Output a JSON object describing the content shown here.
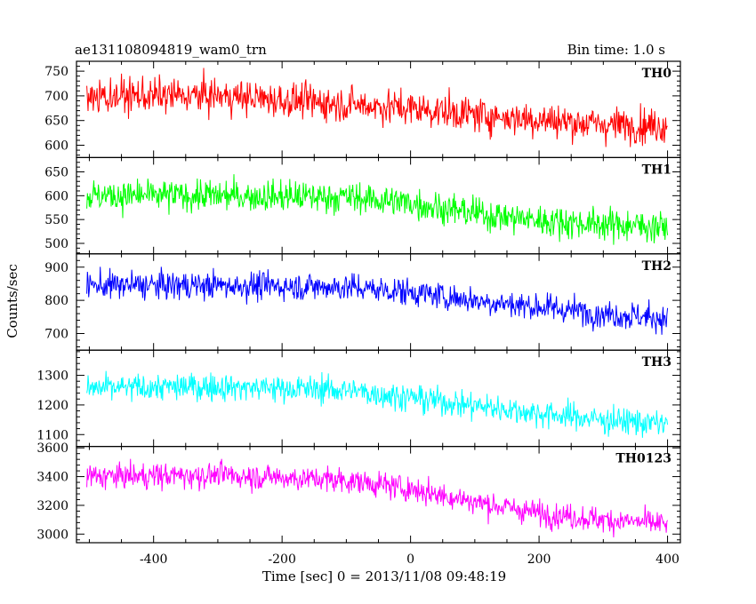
{
  "header": {
    "title": "ae131108094819_wam0_trn",
    "bin_time": "Bin time: 1.0 s"
  },
  "axes": {
    "xlabel": "Time [sec] 0 = 2013/11/08 09:48:19",
    "ylabel": "Counts/sec"
  },
  "chart_data": {
    "type": "line",
    "title": "ae131108094819_wam0_trn",
    "xlabel": "Time [sec] 0 = 2013/11/08 09:48:19",
    "ylabel": "Counts/sec",
    "xlim": [
      -520,
      420
    ],
    "x_range": [
      -504,
      400
    ],
    "x_step": 1.0,
    "x_ticks": [
      -400,
      -200,
      0,
      200,
      400
    ],
    "grid": false,
    "panels": [
      {
        "name": "TH0",
        "color": "#ff0000",
        "ylim": [
          575,
          770
        ],
        "y_ticks": [
          600,
          650,
          700,
          750
        ],
        "trend": [
          [
            -504,
            700
          ],
          [
            -300,
            700
          ],
          [
            -100,
            683
          ],
          [
            0,
            675
          ],
          [
            100,
            662
          ],
          [
            200,
            652
          ],
          [
            300,
            642
          ],
          [
            400,
            640
          ]
        ],
        "noise_sd": 32
      },
      {
        "name": "TH1",
        "color": "#00ff00",
        "ylim": [
          478,
          680
        ],
        "y_ticks": [
          500,
          550,
          600,
          650
        ],
        "trend": [
          [
            -504,
            600
          ],
          [
            -300,
            600
          ],
          [
            -100,
            597
          ],
          [
            0,
            585
          ],
          [
            100,
            563
          ],
          [
            200,
            548
          ],
          [
            300,
            540
          ],
          [
            400,
            535
          ]
        ],
        "noise_sd": 30
      },
      {
        "name": "TH2",
        "color": "#0000ff",
        "ylim": [
          650,
          940
        ],
        "y_ticks": [
          700,
          800,
          900
        ],
        "trend": [
          [
            -504,
            845
          ],
          [
            -300,
            845
          ],
          [
            -100,
            840
          ],
          [
            0,
            825
          ],
          [
            100,
            800
          ],
          [
            200,
            780
          ],
          [
            300,
            760
          ],
          [
            400,
            745
          ]
        ],
        "noise_sd": 38
      },
      {
        "name": "TH3",
        "color": "#00ffff",
        "ylim": [
          1060,
          1385
        ],
        "y_ticks": [
          1100,
          1200,
          1300
        ],
        "trend": [
          [
            -504,
            1255
          ],
          [
            -300,
            1262
          ],
          [
            -100,
            1250
          ],
          [
            0,
            1225
          ],
          [
            100,
            1198
          ],
          [
            200,
            1172
          ],
          [
            300,
            1150
          ],
          [
            400,
            1135
          ]
        ],
        "noise_sd": 42
      },
      {
        "name": "TH0123",
        "color": "#ff00ff",
        "ylim": [
          2940,
          3610
        ],
        "y_ticks": [
          3000,
          3200,
          3400,
          3600
        ],
        "trend": [
          [
            -504,
            3400
          ],
          [
            -300,
            3412
          ],
          [
            -100,
            3375
          ],
          [
            0,
            3315
          ],
          [
            100,
            3225
          ],
          [
            200,
            3145
          ],
          [
            300,
            3100
          ],
          [
            400,
            3070
          ]
        ],
        "noise_sd": 80
      }
    ]
  }
}
